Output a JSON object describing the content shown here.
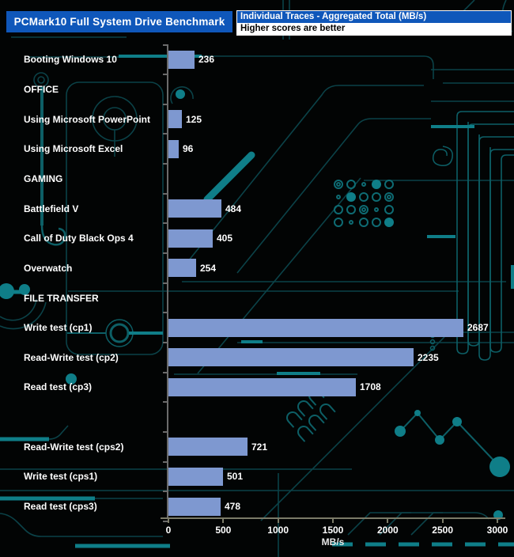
{
  "title": "PCMark10 Full System Drive Benchmark",
  "legend": {
    "series_label": "Individual Traces - Aggregated Total (MB/s)",
    "note": "Higher scores are better"
  },
  "colors": {
    "accent_blue": "#0F57BA",
    "bar_fill": "#7E98D0",
    "trace_teal_dim": "#0b4248",
    "trace_teal_mid": "#0d5f66",
    "trace_teal_bright": "#0f7e88",
    "axis_gray": "#6b6b6b",
    "axis_olive": "#7b7b68"
  },
  "chart_data": {
    "type": "bar",
    "orientation": "horizontal",
    "title": "PCMark10 Full System Drive Benchmark",
    "series_label": "Individual Traces - Aggregated Total (MB/s)",
    "note": "Higher scores are better",
    "xlabel": "MB/s",
    "xlim": [
      0,
      3000
    ],
    "x_ticks": [
      0,
      500,
      1000,
      1500,
      2000,
      2500,
      3000
    ],
    "grid": false,
    "bar_color": "#7E98D0",
    "rows": [
      {
        "type": "bar",
        "label": "Booting Windows 10",
        "value": 236
      },
      {
        "type": "header",
        "label": "OFFICE"
      },
      {
        "type": "bar",
        "label": "Using Microsoft PowerPoint",
        "value": 125
      },
      {
        "type": "bar",
        "label": "Using Microsoft Excel",
        "value": 96
      },
      {
        "type": "header",
        "label": "GAMING"
      },
      {
        "type": "bar",
        "label": "Battlefield V",
        "value": 484
      },
      {
        "type": "bar",
        "label": "Call of Duty Black Ops 4",
        "value": 405
      },
      {
        "type": "bar",
        "label": "Overwatch",
        "value": 254
      },
      {
        "type": "header",
        "label": "FILE TRANSFER"
      },
      {
        "type": "bar",
        "label": "Write test (cp1)",
        "value": 2687
      },
      {
        "type": "bar",
        "label": "Read-Write test (cp2)",
        "value": 2235
      },
      {
        "type": "bar",
        "label": "Read test (cp3)",
        "value": 1708
      },
      {
        "type": "spacer",
        "label": ""
      },
      {
        "type": "bar",
        "label": "Read-Write test (cps2)",
        "value": 721
      },
      {
        "type": "bar",
        "label": "Write test (cps1)",
        "value": 501
      },
      {
        "type": "bar",
        "label": "Read test (cps3)",
        "value": 478
      }
    ]
  }
}
